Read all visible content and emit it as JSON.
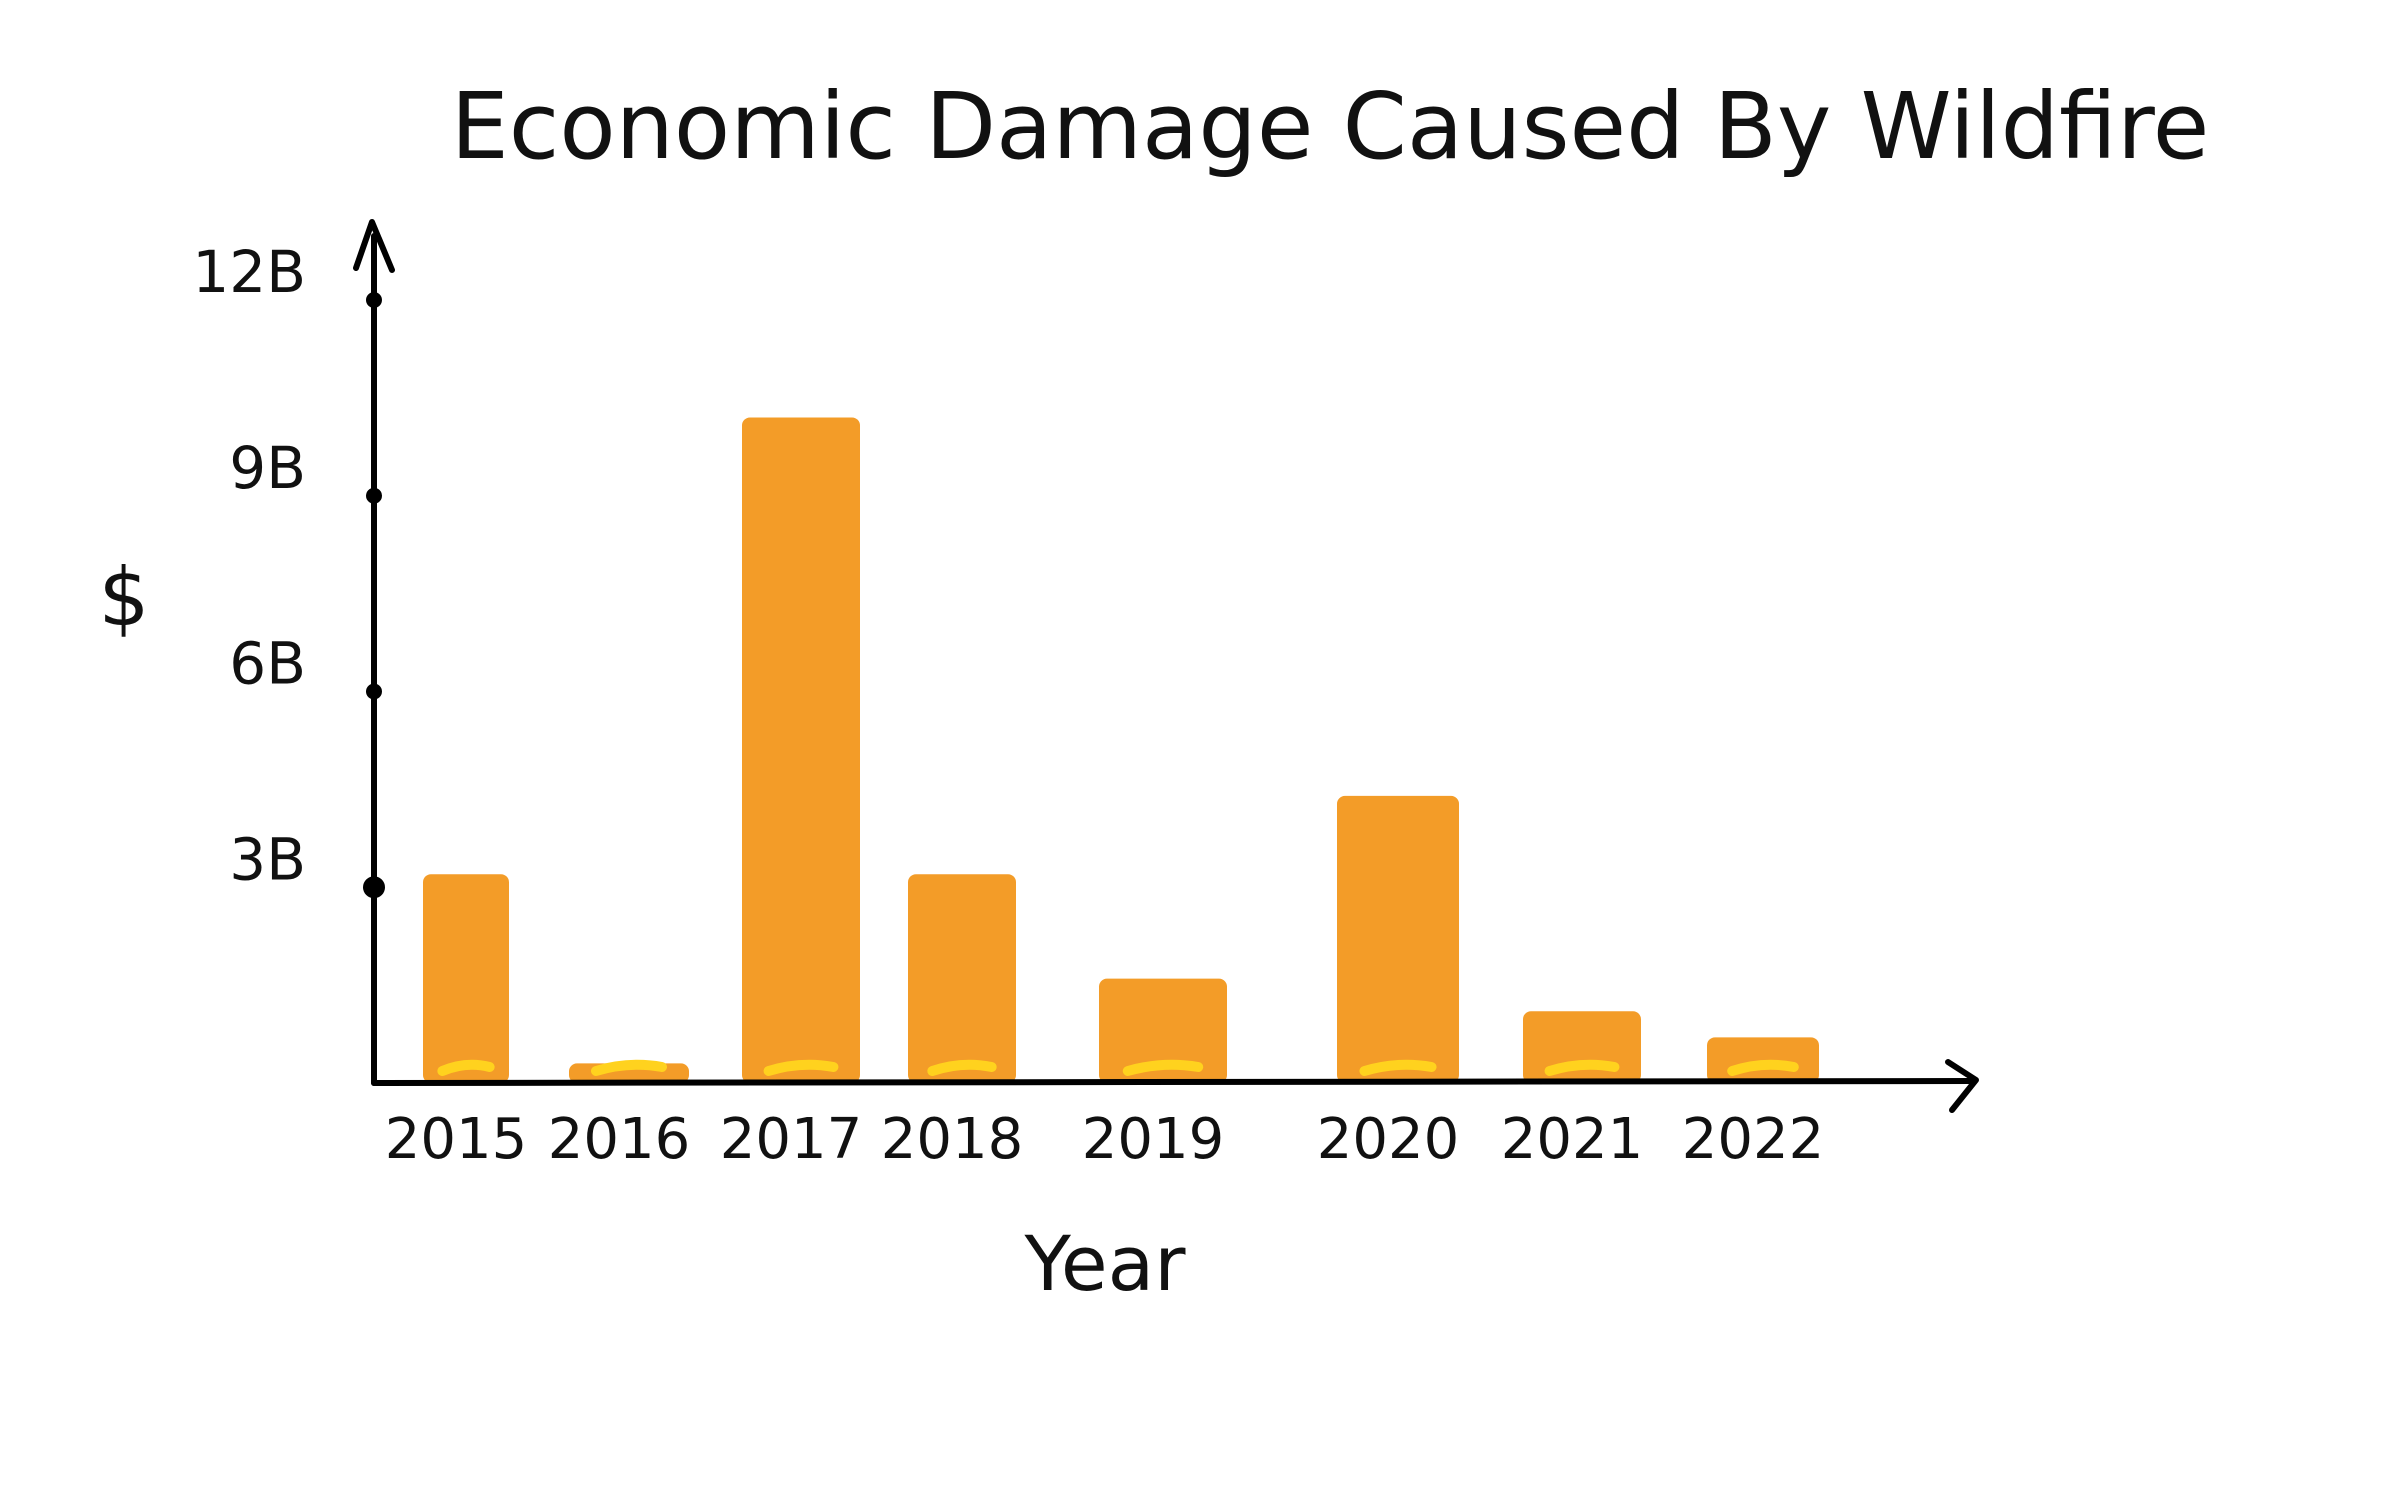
{
  "chart_data": {
    "type": "bar",
    "title": "Economic Damage Caused By Wildfire",
    "xlabel": "Year",
    "ylabel": "$",
    "categories": [
      "2015",
      "2016",
      "2017",
      "2018",
      "2019",
      "2020",
      "2021",
      "2022"
    ],
    "values": [
      3.2,
      0.3,
      10.2,
      3.2,
      1.6,
      4.4,
      1.1,
      0.7
    ],
    "value_unit": "B",
    "yticks": [
      3,
      6,
      9,
      12
    ],
    "ytick_labels": [
      "3B",
      "6B",
      "9B",
      "12B"
    ],
    "ylim": [
      0,
      12.3
    ],
    "grid": false,
    "legend": "none",
    "bar_color": "#F39C28",
    "accent_color": "#FFD21E",
    "axis_color": "#000000"
  }
}
